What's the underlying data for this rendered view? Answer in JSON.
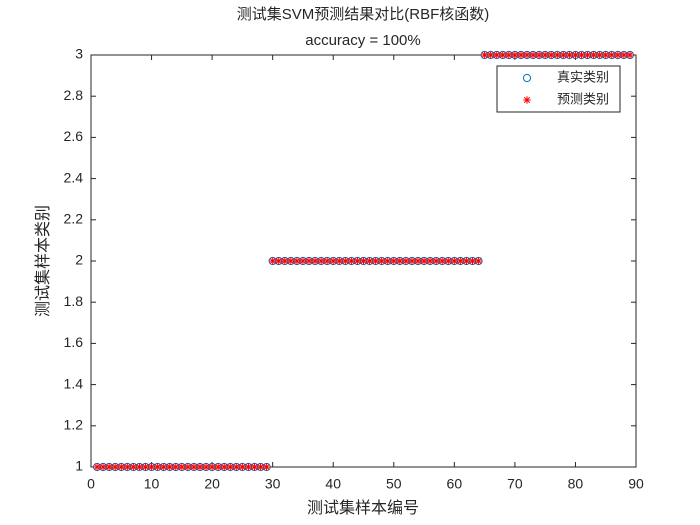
{
  "chart_data": {
    "type": "scatter",
    "title": "测试集SVM预测结果对比(RBF核函数)",
    "subtitle": "accuracy = 100%",
    "x_label": "测试集样本编号",
    "y_label": "测试集样本类别",
    "x": [
      1,
      2,
      3,
      4,
      5,
      6,
      7,
      8,
      9,
      10,
      11,
      12,
      13,
      14,
      15,
      16,
      17,
      18,
      19,
      20,
      21,
      22,
      23,
      24,
      25,
      26,
      27,
      28,
      29,
      30,
      31,
      32,
      33,
      34,
      35,
      36,
      37,
      38,
      39,
      40,
      41,
      42,
      43,
      44,
      45,
      46,
      47,
      48,
      49,
      50,
      51,
      52,
      53,
      54,
      55,
      56,
      57,
      58,
      59,
      60,
      61,
      62,
      63,
      64,
      65,
      66,
      67,
      68,
      69,
      70,
      71,
      72,
      73,
      74,
      75,
      76,
      77,
      78,
      79,
      80,
      81,
      82,
      83,
      84,
      85,
      86,
      87,
      88,
      89
    ],
    "series": [
      {
        "name": "真实类别",
        "color": "#0072bd",
        "marker": "circle",
        "values": [
          1,
          1,
          1,
          1,
          1,
          1,
          1,
          1,
          1,
          1,
          1,
          1,
          1,
          1,
          1,
          1,
          1,
          1,
          1,
          1,
          1,
          1,
          1,
          1,
          1,
          1,
          1,
          1,
          1,
          2,
          2,
          2,
          2,
          2,
          2,
          2,
          2,
          2,
          2,
          2,
          2,
          2,
          2,
          2,
          2,
          2,
          2,
          2,
          2,
          2,
          2,
          2,
          2,
          2,
          2,
          2,
          2,
          2,
          2,
          2,
          2,
          2,
          2,
          2,
          3,
          3,
          3,
          3,
          3,
          3,
          3,
          3,
          3,
          3,
          3,
          3,
          3,
          3,
          3,
          3,
          3,
          3,
          3,
          3,
          3,
          3,
          3,
          3,
          3
        ]
      },
      {
        "name": "预测类别",
        "color": "#ff0000",
        "marker": "asterisk",
        "values": [
          1,
          1,
          1,
          1,
          1,
          1,
          1,
          1,
          1,
          1,
          1,
          1,
          1,
          1,
          1,
          1,
          1,
          1,
          1,
          1,
          1,
          1,
          1,
          1,
          1,
          1,
          1,
          1,
          1,
          2,
          2,
          2,
          2,
          2,
          2,
          2,
          2,
          2,
          2,
          2,
          2,
          2,
          2,
          2,
          2,
          2,
          2,
          2,
          2,
          2,
          2,
          2,
          2,
          2,
          2,
          2,
          2,
          2,
          2,
          2,
          2,
          2,
          2,
          2,
          3,
          3,
          3,
          3,
          3,
          3,
          3,
          3,
          3,
          3,
          3,
          3,
          3,
          3,
          3,
          3,
          3,
          3,
          3,
          3,
          3,
          3,
          3,
          3,
          3
        ]
      }
    ],
    "xlim": [
      0,
      90
    ],
    "xticks": [
      0,
      10,
      20,
      30,
      40,
      50,
      60,
      70,
      80,
      90
    ],
    "ylim": [
      1,
      3
    ],
    "yticks": [
      1,
      1.2,
      1.4,
      1.6,
      1.8,
      2,
      2.2,
      2.4,
      2.6,
      2.8,
      3
    ],
    "grid": false,
    "legend": "top-right"
  }
}
